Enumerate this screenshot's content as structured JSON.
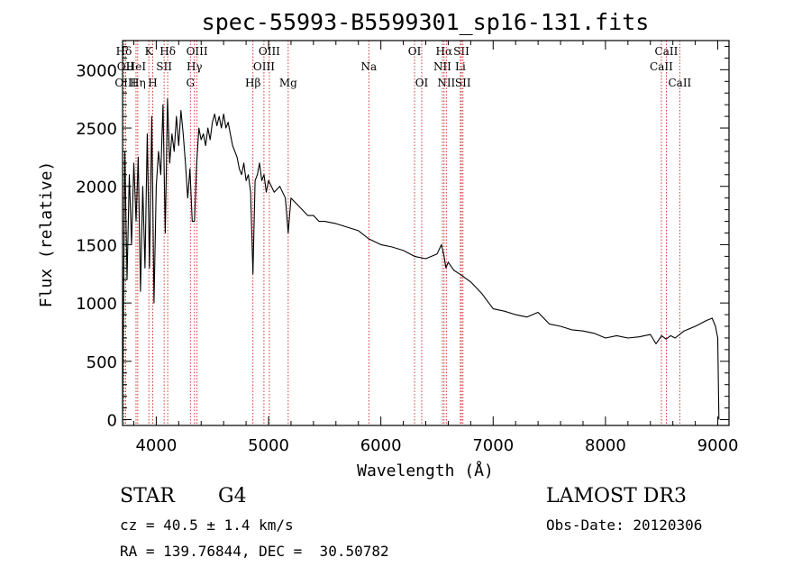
{
  "chart_data": {
    "type": "line",
    "title": "spec-55993-B5599301_sp16-131.fits",
    "xlabel": "Wavelength (Å)",
    "ylabel": "Flux (relative)",
    "xlim": [
      3700,
      9100
    ],
    "ylim": [
      -50,
      3250
    ],
    "xticks": [
      4000,
      5000,
      6000,
      7000,
      8000,
      9000
    ],
    "yticks": [
      0,
      500,
      1000,
      1500,
      2000,
      2500,
      3000
    ],
    "series": [
      {
        "name": "flux",
        "color": "#000000",
        "x": [
          3700,
          3720,
          3740,
          3760,
          3780,
          3800,
          3820,
          3840,
          3860,
          3880,
          3900,
          3920,
          3940,
          3960,
          3970,
          3980,
          4000,
          4020,
          4040,
          4060,
          4080,
          4100,
          4120,
          4140,
          4160,
          4180,
          4200,
          4220,
          4240,
          4260,
          4280,
          4300,
          4320,
          4340,
          4360,
          4380,
          4400,
          4420,
          4440,
          4460,
          4480,
          4500,
          4520,
          4540,
          4560,
          4580,
          4600,
          4620,
          4640,
          4660,
          4680,
          4700,
          4720,
          4740,
          4760,
          4780,
          4800,
          4820,
          4840,
          4861,
          4880,
          4900,
          4920,
          4940,
          4960,
          4980,
          5000,
          5050,
          5100,
          5150,
          5175,
          5200,
          5250,
          5300,
          5350,
          5400,
          5450,
          5500,
          5600,
          5700,
          5800,
          5893,
          6000,
          6100,
          6200,
          6300,
          6400,
          6500,
          6540,
          6563,
          6580,
          6600,
          6650,
          6700,
          6800,
          6900,
          7000,
          7100,
          7200,
          7300,
          7400,
          7500,
          7600,
          7700,
          7800,
          7900,
          8000,
          8100,
          8200,
          8300,
          8400,
          8450,
          8500,
          8540,
          8580,
          8620,
          8660,
          8700,
          8800,
          8900,
          8950,
          8980,
          9000,
          9010
        ],
        "values": [
          50,
          2300,
          1200,
          2100,
          1500,
          2200,
          1700,
          2250,
          1100,
          2000,
          1300,
          2450,
          1300,
          2600,
          1800,
          1000,
          2000,
          2300,
          2100,
          2700,
          1600,
          2750,
          2200,
          2450,
          2300,
          2600,
          2350,
          2650,
          2450,
          2200,
          1900,
          2150,
          1700,
          1700,
          2200,
          2500,
          2400,
          2450,
          2350,
          2500,
          2400,
          2550,
          2620,
          2520,
          2600,
          2500,
          2620,
          2500,
          2550,
          2450,
          2350,
          2300,
          2250,
          2150,
          2100,
          2200,
          2050,
          2100,
          1950,
          1250,
          2050,
          2100,
          2200,
          2050,
          2100,
          1950,
          2050,
          1950,
          2000,
          1900,
          1600,
          1900,
          1850,
          1800,
          1750,
          1750,
          1700,
          1700,
          1680,
          1650,
          1620,
          1550,
          1500,
          1480,
          1450,
          1400,
          1380,
          1420,
          1500,
          1400,
          1300,
          1350,
          1280,
          1250,
          1180,
          1080,
          950,
          930,
          900,
          880,
          920,
          820,
          800,
          770,
          760,
          740,
          700,
          720,
          700,
          710,
          730,
          650,
          720,
          690,
          720,
          700,
          730,
          760,
          800,
          850,
          870,
          800,
          700,
          0
        ]
      }
    ],
    "spectral_lines": [
      {
        "label": "Hδ",
        "wavelength": 3712,
        "row": 1
      },
      {
        "label": "K",
        "wavelength": 3934,
        "row": 1
      },
      {
        "label": "Hδ",
        "wavelength": 4102,
        "row": 1
      },
      {
        "label": "OIII",
        "wavelength": 4363,
        "row": 1
      },
      {
        "label": "OIII",
        "wavelength": 5007,
        "row": 1
      },
      {
        "label": "OI",
        "wavelength": 6300,
        "row": 1
      },
      {
        "label": "Hα",
        "wavelength": 6563,
        "row": 1
      },
      {
        "label": "SII",
        "wavelength": 6717,
        "row": 1
      },
      {
        "label": "CaII",
        "wavelength": 8542,
        "row": 1
      },
      {
        "label": "OII",
        "wavelength": 3727,
        "row": 2
      },
      {
        "label": "HeI",
        "wavelength": 3820,
        "row": 2
      },
      {
        "label": "SII",
        "wavelength": 4070,
        "row": 2
      },
      {
        "label": "Hγ",
        "wavelength": 4340,
        "row": 2
      },
      {
        "label": "OIII",
        "wavelength": 4959,
        "row": 2
      },
      {
        "label": "Na",
        "wavelength": 5893,
        "row": 2
      },
      {
        "label": "NII",
        "wavelength": 6548,
        "row": 2
      },
      {
        "label": "Li",
        "wavelength": 6708,
        "row": 2
      },
      {
        "label": "CaII",
        "wavelength": 8498,
        "row": 2
      },
      {
        "label": "OIII",
        "wavelength": 3727,
        "row": 3
      },
      {
        "label": "Hη",
        "wavelength": 3835,
        "row": 3
      },
      {
        "label": "H",
        "wavelength": 3969,
        "row": 3
      },
      {
        "label": "G",
        "wavelength": 4304,
        "row": 3
      },
      {
        "label": "Hβ",
        "wavelength": 4861,
        "row": 3
      },
      {
        "label": "Mg",
        "wavelength": 5175,
        "row": 3
      },
      {
        "label": "OI",
        "wavelength": 6364,
        "row": 3
      },
      {
        "label": "NII",
        "wavelength": 6583,
        "row": 3
      },
      {
        "label": "SII",
        "wavelength": 6731,
        "row": 3
      },
      {
        "label": "CaII",
        "wavelength": 8662,
        "row": 3
      }
    ],
    "spectral_line_color": "#cc2222"
  },
  "info": {
    "object_class": "STAR",
    "subclass": "G4",
    "survey": "LAMOST DR3",
    "redshift": "cz = 40.5 ± 1.4 km/s",
    "obs_date": "Obs-Date: 20120306",
    "coords": "RA = 139.76844, DEC =  30.50782"
  }
}
